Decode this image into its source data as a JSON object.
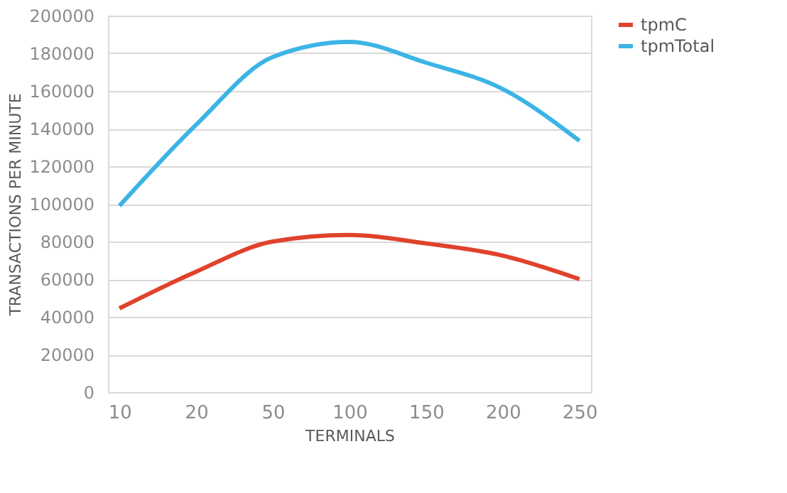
{
  "chart_data": {
    "type": "line",
    "xlabel": "TERMINALS",
    "ylabel": "TRANSACTIONS PER MINUTE",
    "categories": [
      "10",
      "20",
      "50",
      "100",
      "150",
      "200",
      "250"
    ],
    "series": [
      {
        "name": "tpmC",
        "color": "#e0422c",
        "values": [
          44500,
          64000,
          80000,
          83500,
          79000,
          72500,
          60000
        ]
      },
      {
        "name": "tpmTotal",
        "color": "#3cb4e5",
        "values": [
          99000,
          142000,
          178000,
          186000,
          175000,
          161000,
          133500
        ]
      }
    ],
    "ylim": [
      0,
      200000
    ],
    "yticks": [
      0,
      20000,
      40000,
      60000,
      80000,
      100000,
      120000,
      140000,
      160000,
      180000,
      200000
    ],
    "grid": "y",
    "legend": "right",
    "marker": "none",
    "line_style": "solid"
  }
}
